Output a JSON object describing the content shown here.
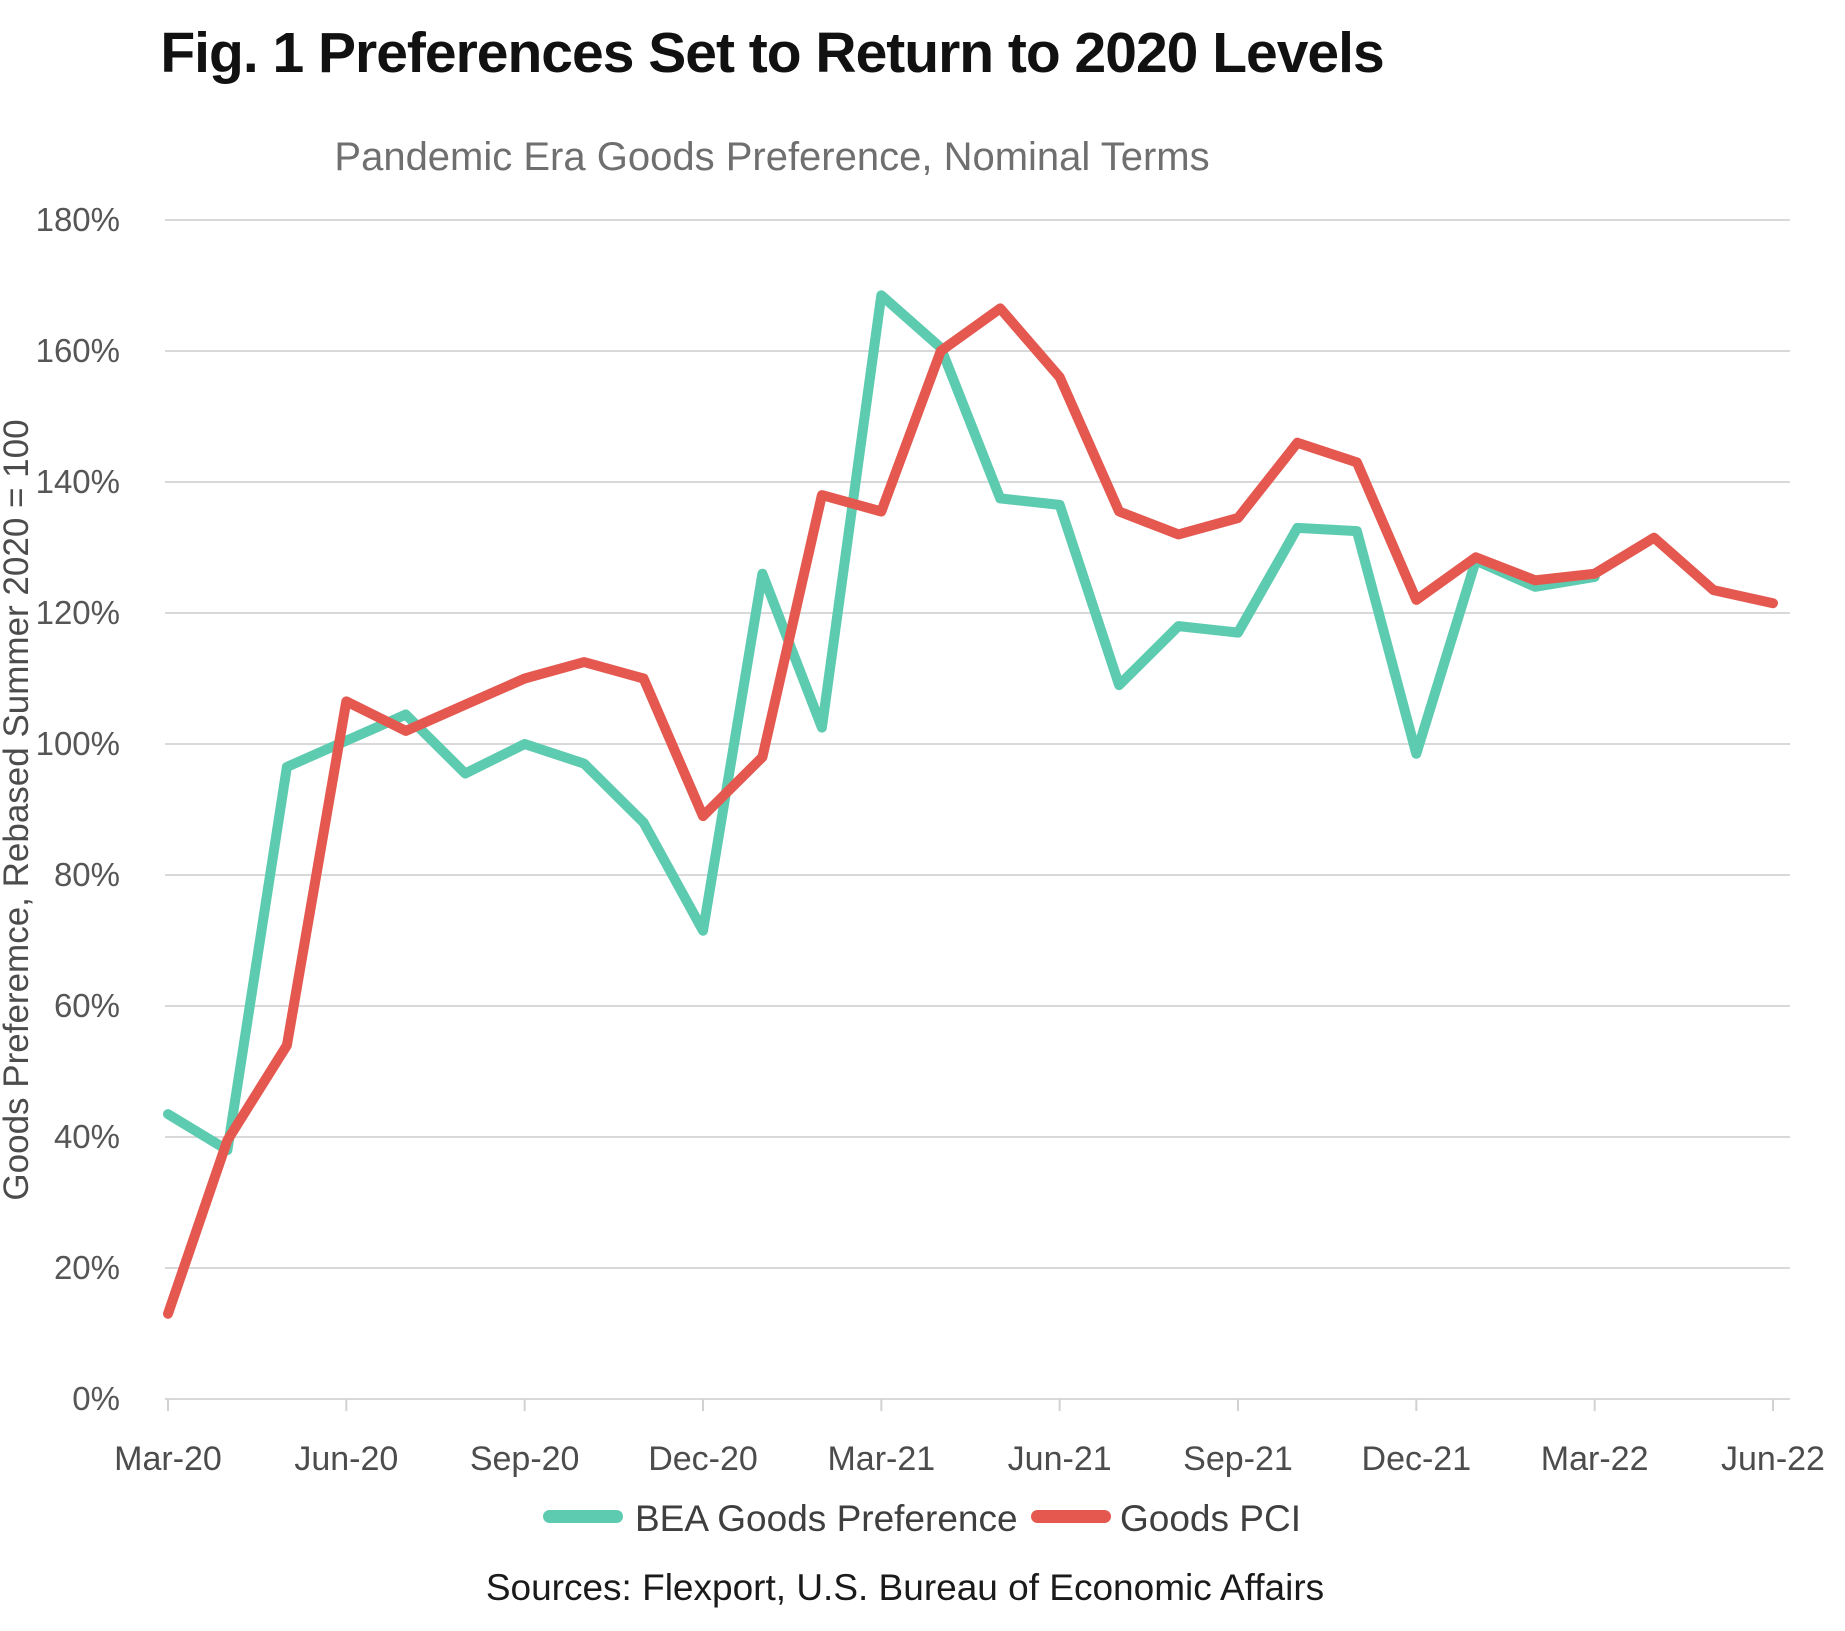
{
  "title": "Fig. 1 Preferences Set to Return to 2020 Levels",
  "subtitle": "Pandemic Era Goods Preference, Nominal Terms",
  "sources": "Sources: Flexport, U.S. Bureau of Economic Affairs",
  "colors": {
    "bea": "#5DCBAF",
    "pci": "#E4584F",
    "grid": "#D9D9D9",
    "axis_line": "#D2D2D2"
  },
  "chart_data": {
    "type": "line",
    "title": "Fig. 1 Preferences Set to Return to 2020 Levels",
    "subtitle": "Pandemic Era Goods Preference, Nominal Terms",
    "xlabel": "",
    "ylabel": "Goods Preferemce, Rebased Summer 2020 = 100",
    "ylim": [
      0,
      180
    ],
    "ytick_step": 20,
    "ytick_suffix": "%",
    "grid": true,
    "legend_position": "bottom",
    "x": [
      "Mar-20",
      "Apr-20",
      "May-20",
      "Jun-20",
      "Jul-20",
      "Aug-20",
      "Sep-20",
      "Oct-20",
      "Nov-20",
      "Dec-20",
      "Jan-21",
      "Feb-21",
      "Mar-21",
      "Apr-21",
      "May-21",
      "Jun-21",
      "Jul-21",
      "Aug-21",
      "Sep-21",
      "Oct-21",
      "Nov-21",
      "Dec-21",
      "Jan-22",
      "Feb-22",
      "Mar-22",
      "Apr-22",
      "May-22",
      "Jun-22"
    ],
    "x_tick_every": 3,
    "series": [
      {
        "name": "BEA Goods Preference",
        "color_key": "bea",
        "values": [
          43.5,
          38,
          96.5,
          100.5,
          104.5,
          95.5,
          100,
          97,
          88,
          71.5,
          126,
          102.5,
          168.5,
          160.5,
          137.5,
          136.5,
          109,
          118,
          117,
          133,
          132.5,
          98.5,
          128,
          124,
          125.5,
          null,
          null,
          null
        ]
      },
      {
        "name": "Goods PCI",
        "color_key": "pci",
        "values": [
          13,
          39.5,
          54,
          106.5,
          102,
          106,
          110,
          112.5,
          110,
          89,
          98,
          138,
          135.5,
          160,
          166.5,
          156,
          135.5,
          132,
          134.5,
          146,
          143,
          122,
          128.5,
          125,
          126,
          131.5,
          123.5,
          121.5
        ]
      }
    ]
  }
}
